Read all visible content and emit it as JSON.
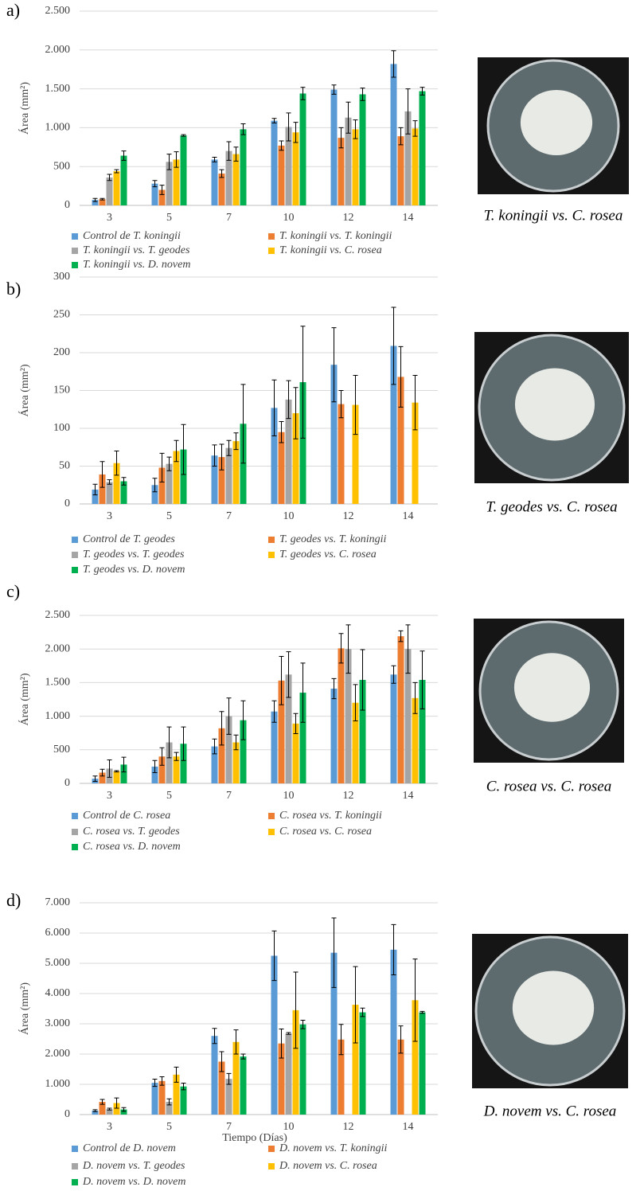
{
  "chart_data": [
    {
      "type": "bar",
      "panel_label": "a)",
      "ylabel": "Área (mm²)",
      "image_caption": "T. koningii vs. C. rosea",
      "categories": [
        "3",
        "5",
        "7",
        "10",
        "12",
        "14"
      ],
      "ylim": [
        0,
        2500
      ],
      "yticks": [
        0,
        {
          "value": 500,
          "label": "500"
        },
        {
          "value": 1000,
          "label": "1.000"
        },
        {
          "value": 1500,
          "label": "1.500"
        },
        {
          "value": 2000,
          "label": "2.000"
        },
        {
          "value": 2500,
          "label": "2.500"
        }
      ],
      "grid": true,
      "series": [
        {
          "name": "Control de T. koningii",
          "color": "#5b9bd5",
          "values": [
            70,
            280,
            590,
            1090,
            1490,
            1820
          ],
          "errors": [
            20,
            40,
            30,
            30,
            60,
            170
          ]
        },
        {
          "name": "T. koningii vs. T. koningii",
          "color": "#ed7d31",
          "values": [
            80,
            200,
            410,
            770,
            870,
            890
          ],
          "errors": [
            10,
            60,
            50,
            60,
            130,
            110
          ]
        },
        {
          "name": "T. koningii vs. T. geodes",
          "color": "#a5a5a5",
          "values": [
            360,
            560,
            700,
            1010,
            1130,
            1210
          ],
          "errors": [
            40,
            100,
            120,
            180,
            200,
            290
          ]
        },
        {
          "name": "T. koningii vs. C. rosea",
          "color": "#ffc000",
          "values": [
            440,
            590,
            660,
            940,
            980,
            990
          ],
          "errors": [
            20,
            100,
            90,
            130,
            120,
            100
          ]
        },
        {
          "name": "T. koningii vs. D. novem",
          "color": "#00b050",
          "values": [
            640,
            900,
            980,
            1440,
            1430,
            1470
          ],
          "errors": [
            60,
            10,
            70,
            80,
            80,
            50
          ]
        }
      ]
    },
    {
      "type": "bar",
      "panel_label": "b)",
      "ylabel": "Área (mm²)",
      "image_caption": "T. geodes vs. C. rosea",
      "categories": [
        "3",
        "5",
        "7",
        "10",
        "12",
        "14"
      ],
      "ylim": [
        0,
        300
      ],
      "yticks": [
        0,
        50,
        100,
        150,
        200,
        250,
        300
      ],
      "grid": true,
      "series": [
        {
          "name": "Control de T. geodes",
          "color": "#5b9bd5",
          "values": [
            19,
            25,
            64,
            127,
            184,
            209
          ],
          "errors": [
            7,
            9,
            14,
            37,
            49,
            51
          ]
        },
        {
          "name": "T. geodes vs. T. koningii",
          "color": "#ed7d31",
          "values": [
            39,
            48,
            62,
            95,
            132,
            168
          ],
          "errors": [
            17,
            19,
            17,
            14,
            18,
            40
          ]
        },
        {
          "name": "T. geodes vs. T. geodes",
          "color": "#a5a5a5",
          "values": [
            29,
            53,
            74,
            138,
            null,
            null
          ],
          "errors": [
            3,
            9,
            10,
            25,
            null,
            null
          ]
        },
        {
          "name": "T. geodes vs. C. rosea",
          "color": "#ffc000",
          "values": [
            54,
            70,
            83,
            120,
            131,
            134
          ],
          "errors": [
            16,
            14,
            11,
            34,
            39,
            36
          ]
        },
        {
          "name": "T. geodes vs. D. novem",
          "color": "#00b050",
          "values": [
            30,
            72,
            106,
            161,
            null,
            null
          ],
          "errors": [
            5,
            33,
            52,
            74,
            null,
            null
          ]
        }
      ]
    },
    {
      "type": "bar",
      "panel_label": "c)",
      "ylabel": "Área (mm²)",
      "image_caption": "C. rosea vs. C. rosea",
      "categories": [
        "3",
        "5",
        "7",
        "10",
        "12",
        "14"
      ],
      "ylim": [
        0,
        2500
      ],
      "yticks": [
        0,
        {
          "value": 500,
          "label": "500"
        },
        {
          "value": 1000,
          "label": "1.000"
        },
        {
          "value": 1500,
          "label": "1.500"
        },
        {
          "value": 2000,
          "label": "2.000"
        },
        {
          "value": 2500,
          "label": "2.500"
        }
      ],
      "grid": true,
      "series": [
        {
          "name": "Control de C. rosea",
          "color": "#5b9bd5",
          "values": [
            70,
            250,
            550,
            1070,
            1410,
            1620
          ],
          "errors": [
            40,
            90,
            110,
            160,
            150,
            130
          ]
        },
        {
          "name": "C. rosea vs. T. koningii",
          "color": "#ed7d31",
          "values": [
            160,
            400,
            820,
            1530,
            2010,
            2190
          ],
          "errors": [
            50,
            130,
            250,
            360,
            220,
            80
          ]
        },
        {
          "name": "C. rosea vs. T. geodes",
          "color": "#a5a5a5",
          "values": [
            220,
            610,
            1000,
            1620,
            2000,
            2000
          ],
          "errors": [
            130,
            230,
            270,
            340,
            360,
            360
          ]
        },
        {
          "name": "C. rosea vs. C. rosea",
          "color": "#ffc000",
          "values": [
            180,
            400,
            610,
            890,
            1200,
            1270
          ],
          "errors": [
            10,
            60,
            110,
            150,
            270,
            230
          ]
        },
        {
          "name": "C. rosea vs. D. novem",
          "color": "#00b050",
          "values": [
            280,
            590,
            940,
            1350,
            1540,
            1540
          ],
          "errors": [
            110,
            250,
            290,
            440,
            450,
            430
          ]
        }
      ]
    },
    {
      "type": "bar",
      "panel_label": "d)",
      "ylabel": "Área (mm²)",
      "xlabel": "Tiempo (Días)",
      "image_caption": "D. novem vs. C. rosea",
      "categories": [
        "3",
        "5",
        "7",
        "10",
        "12",
        "14"
      ],
      "ylim": [
        0,
        7000
      ],
      "yticks": [
        0,
        {
          "value": 1000,
          "label": "1.000"
        },
        {
          "value": 2000,
          "label": "2.000"
        },
        {
          "value": 3000,
          "label": "3.000"
        },
        {
          "value": 4000,
          "label": "4.000"
        },
        {
          "value": 5000,
          "label": "5.000"
        },
        {
          "value": 6000,
          "label": "6.000"
        },
        {
          "value": 7000,
          "label": "7.000"
        }
      ],
      "grid": true,
      "series": [
        {
          "name": "Control de D. novem",
          "color": "#5b9bd5",
          "values": [
            130,
            1050,
            2600,
            5250,
            5350,
            5450
          ],
          "errors": [
            30,
            120,
            250,
            820,
            1150,
            830
          ]
        },
        {
          "name": "D. novem vs. T. koningii",
          "color": "#ed7d31",
          "values": [
            420,
            1110,
            1750,
            2350,
            2480,
            2480
          ],
          "errors": [
            80,
            140,
            330,
            480,
            500,
            450
          ]
        },
        {
          "name": "D. novem vs. T. geodes",
          "color": "#a5a5a5",
          "values": [
            180,
            420,
            1180,
            2680,
            null,
            null
          ],
          "errors": [
            30,
            100,
            180,
            30,
            null,
            null
          ]
        },
        {
          "name": "D. novem vs. C. rosea",
          "color": "#ffc000",
          "values": [
            380,
            1320,
            2400,
            3450,
            3630,
            3780
          ],
          "errors": [
            170,
            250,
            400,
            1260,
            1260,
            1360
          ]
        },
        {
          "name": "D. novem vs. D. novem",
          "color": "#00b050",
          "values": [
            170,
            930,
            1920,
            2980,
            3380,
            3380
          ],
          "errors": [
            60,
            110,
            80,
            140,
            140,
            30
          ]
        }
      ]
    }
  ]
}
